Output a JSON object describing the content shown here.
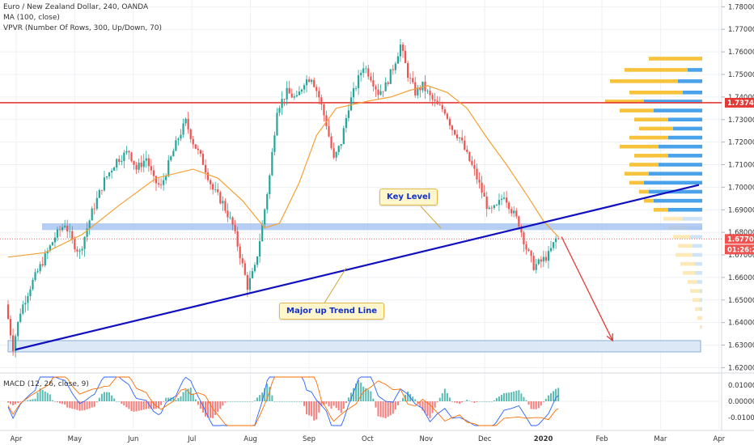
{
  "legend": {
    "symbol": "Euro / New Zealand Dollar, 240, OANDA",
    "ma": "MA (100, close)",
    "vpvr": "VPVR (Number Of Rows, 300, Up/Down, 70)",
    "macd": "MACD (12, 26, close, 9)"
  },
  "annotations": {
    "key_level": "Key Level",
    "trend_line": "Major up Trend Line"
  },
  "price_badges": {
    "resistance": "1.73746",
    "last_price": "1.67706",
    "countdown": "01:26:26"
  },
  "colors": {
    "up_candle": "#26a69a",
    "down_candle": "#ef5350",
    "ma_line": "#f5a033",
    "trend_line": "#1010c0",
    "resistance_line": "#e53935",
    "last_price_line": "#e57373",
    "key_level_zone": "#9fbef0",
    "vpvr_up": "#4aa3ea",
    "vpvr_down": "#f7c23c",
    "macd_line": "#2962ff",
    "signal_line": "#ff6d00"
  },
  "chart_data": {
    "type": "candlestick",
    "symbol": "EUR/NZD",
    "timeframe": "240",
    "price_axis": {
      "range": [
        1.618,
        1.783
      ],
      "ticks": [
        "1.78000",
        "1.77000",
        "1.76000",
        "1.75000",
        "1.74000",
        "1.73000",
        "1.72000",
        "1.71000",
        "1.70000",
        "1.69000",
        "1.68000",
        "1.67000",
        "1.66000",
        "1.65000",
        "1.64000",
        "1.63000",
        "1.62000"
      ]
    },
    "macd_axis": {
      "range": [
        -0.017,
        0.017
      ],
      "ticks": [
        "0.01000",
        "0.00000",
        "-0.01000"
      ]
    },
    "time_axis": {
      "ticks": [
        "Apr",
        "May",
        "Jun",
        "Jul",
        "Aug",
        "Sep",
        "Oct",
        "Nov",
        "Dec",
        "2020",
        "Feb",
        "Mar",
        "Apr"
      ]
    },
    "price_path": [
      [
        0,
        1.648
      ],
      [
        3,
        1.629
      ],
      [
        6,
        1.645
      ],
      [
        10,
        1.656
      ],
      [
        15,
        1.667
      ],
      [
        20,
        1.678
      ],
      [
        24,
        1.684
      ],
      [
        27,
        1.676
      ],
      [
        30,
        1.671
      ],
      [
        35,
        1.689
      ],
      [
        40,
        1.703
      ],
      [
        45,
        1.712
      ],
      [
        50,
        1.716
      ],
      [
        53,
        1.708
      ],
      [
        57,
        1.713
      ],
      [
        60,
        1.703
      ],
      [
        63,
        1.7
      ],
      [
        66,
        1.71
      ],
      [
        70,
        1.722
      ],
      [
        73,
        1.729
      ],
      [
        76,
        1.72
      ],
      [
        80,
        1.711
      ],
      [
        84,
        1.699
      ],
      [
        88,
        1.693
      ],
      [
        92,
        1.683
      ],
      [
        95,
        1.67
      ],
      [
        98,
        1.656
      ],
      [
        101,
        1.664
      ],
      [
        104,
        1.683
      ],
      [
        107,
        1.705
      ],
      [
        110,
        1.735
      ],
      [
        114,
        1.742
      ],
      [
        118,
        1.739
      ],
      [
        121,
        1.747
      ],
      [
        124,
        1.749
      ],
      [
        127,
        1.74
      ],
      [
        130,
        1.728
      ],
      [
        133,
        1.712
      ],
      [
        136,
        1.72
      ],
      [
        139,
        1.736
      ],
      [
        142,
        1.745
      ],
      [
        145,
        1.754
      ],
      [
        148,
        1.749
      ],
      [
        151,
        1.742
      ],
      [
        154,
        1.745
      ],
      [
        157,
        1.753
      ],
      [
        160,
        1.763
      ],
      [
        163,
        1.75
      ],
      [
        166,
        1.742
      ],
      [
        169,
        1.745
      ],
      [
        172,
        1.74
      ],
      [
        175,
        1.736
      ],
      [
        178,
        1.734
      ],
      [
        181,
        1.726
      ],
      [
        184,
        1.722
      ],
      [
        187,
        1.714
      ],
      [
        190,
        1.707
      ],
      [
        193,
        1.698
      ],
      [
        196,
        1.689
      ],
      [
        199,
        1.691
      ],
      [
        202,
        1.697
      ],
      [
        205,
        1.69
      ],
      [
        208,
        1.684
      ],
      [
        211,
        1.673
      ],
      [
        214,
        1.665
      ],
      [
        217,
        1.667
      ],
      [
        220,
        1.67
      ],
      [
        223,
        1.677
      ]
    ],
    "ma_path": [
      [
        0,
        1.669
      ],
      [
        15,
        1.671
      ],
      [
        30,
        1.679
      ],
      [
        45,
        1.692
      ],
      [
        60,
        1.704
      ],
      [
        75,
        1.708
      ],
      [
        85,
        1.704
      ],
      [
        95,
        1.694
      ],
      [
        104,
        1.682
      ],
      [
        110,
        1.684
      ],
      [
        118,
        1.702
      ],
      [
        125,
        1.723
      ],
      [
        133,
        1.735
      ],
      [
        145,
        1.738
      ],
      [
        155,
        1.74
      ],
      [
        163,
        1.743
      ],
      [
        170,
        1.745
      ],
      [
        178,
        1.742
      ],
      [
        186,
        1.735
      ],
      [
        194,
        1.722
      ],
      [
        202,
        1.71
      ],
      [
        210,
        1.697
      ],
      [
        217,
        1.685
      ],
      [
        223,
        1.678
      ]
    ],
    "levels": {
      "resistance": 1.73746,
      "last_price": 1.67706,
      "key_level_zone": [
        1.681,
        1.684
      ],
      "support_zone": [
        1.627,
        1.632
      ]
    },
    "trend_line": {
      "from": [
        3,
        1.628
      ],
      "to": [
        280,
        1.701
      ]
    },
    "projection_arrow": {
      "from": [
        223,
        1.678
      ],
      "to": [
        245,
        1.632
      ]
    },
    "vpvr_profile": [
      [
        1.757,
        22,
        0
      ],
      [
        1.752,
        32,
        6
      ],
      [
        1.747,
        38,
        10
      ],
      [
        1.742,
        30,
        8
      ],
      [
        1.738,
        40,
        24
      ],
      [
        1.734,
        34,
        20
      ],
      [
        1.73,
        28,
        14
      ],
      [
        1.726,
        26,
        12
      ],
      [
        1.722,
        30,
        14
      ],
      [
        1.718,
        34,
        18
      ],
      [
        1.714,
        28,
        14
      ],
      [
        1.71,
        30,
        18
      ],
      [
        1.706,
        32,
        22
      ],
      [
        1.702,
        30,
        24
      ],
      [
        1.698,
        26,
        22
      ],
      [
        1.694,
        24,
        20
      ],
      [
        1.69,
        20,
        14
      ],
      [
        1.686,
        16,
        8
      ],
      [
        1.682,
        14,
        6
      ],
      [
        1.678,
        12,
        5
      ],
      [
        1.674,
        10,
        4
      ],
      [
        1.67,
        11,
        4
      ],
      [
        1.666,
        9,
        3
      ],
      [
        1.662,
        8,
        3
      ],
      [
        1.658,
        6,
        2
      ],
      [
        1.654,
        5,
        1
      ],
      [
        1.65,
        4,
        1
      ],
      [
        1.646,
        3,
        1
      ],
      [
        1.642,
        2,
        0
      ],
      [
        1.638,
        1,
        0
      ]
    ]
  }
}
